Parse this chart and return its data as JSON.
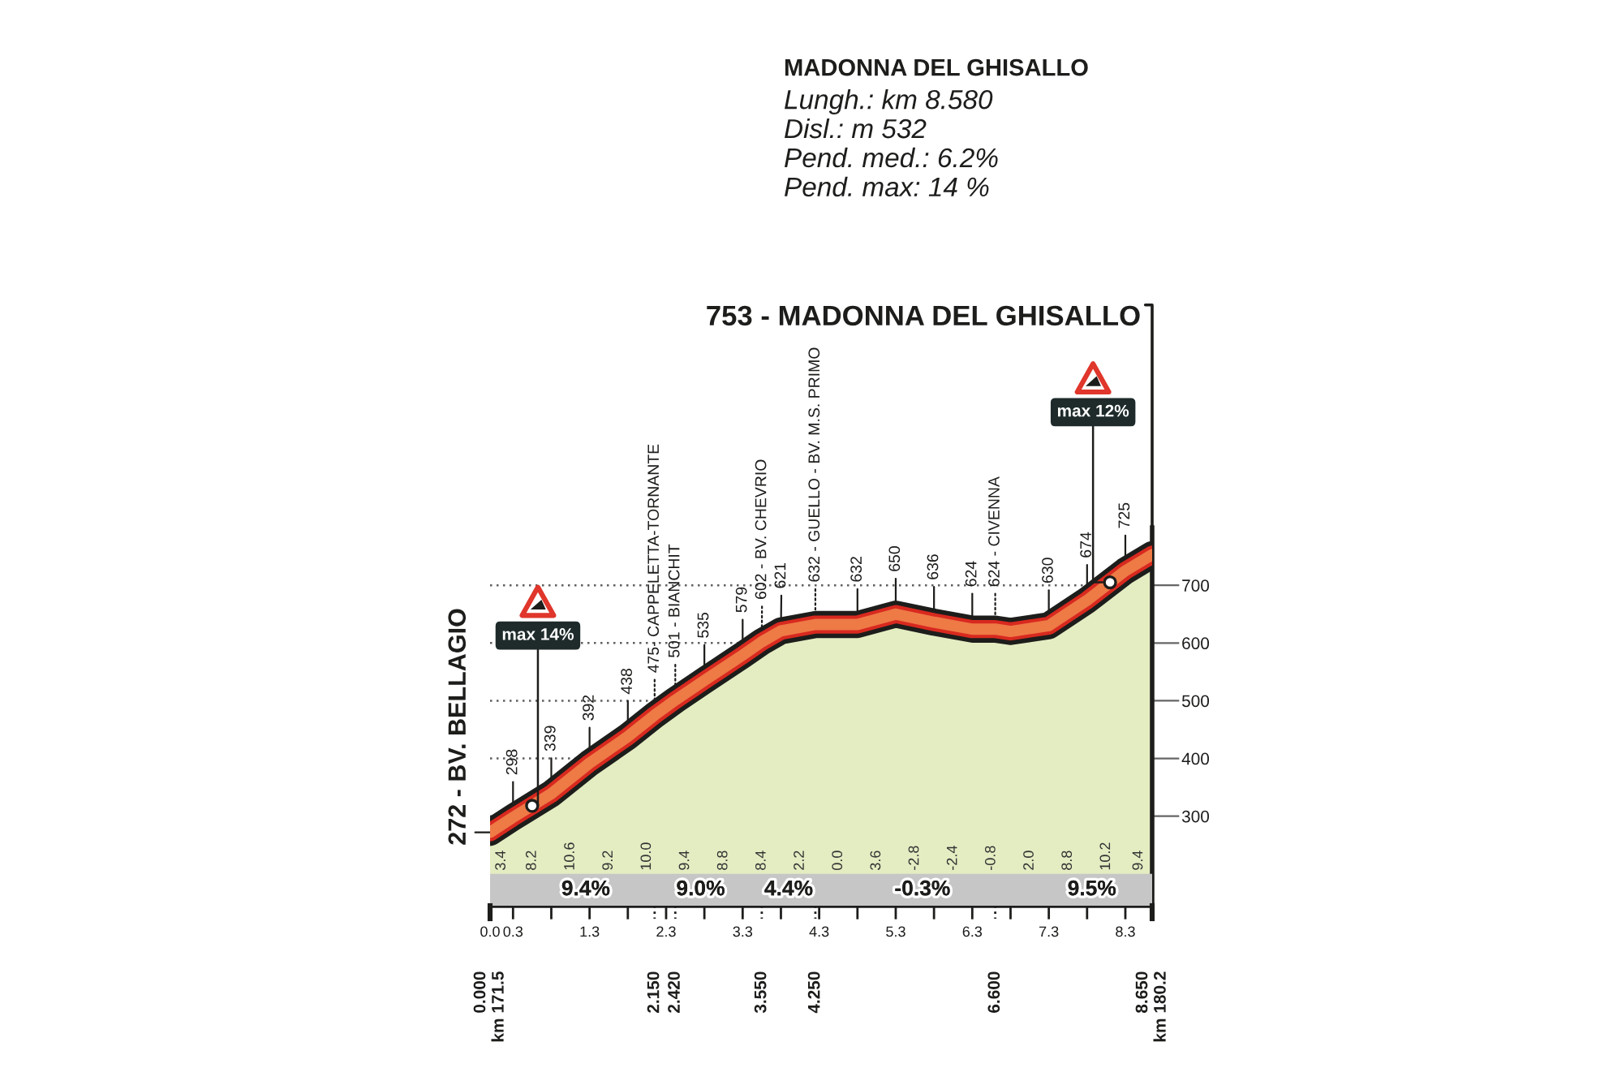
{
  "chart_data": {
    "type": "area",
    "title": "MADONNA DEL GHISALLO",
    "subtitle": "Lungh.: km 8.580\nDisl.: m 532\nPend. med.: 6.2%\nPend. max: 14 %",
    "x": [
      0,
      0.3,
      0.8,
      1.3,
      1.8,
      2.15,
      2.42,
      2.8,
      3.3,
      3.55,
      3.8,
      4.25,
      4.8,
      5.3,
      5.8,
      6.3,
      6.6,
      6.8,
      7.3,
      7.8,
      8.3,
      8.65
    ],
    "series": [
      {
        "color": "#e4ecc2",
        "values": [
          272,
          298,
          339,
          392,
          438,
          475,
          501,
          535,
          579,
          602,
          621,
          632,
          632,
          650,
          636,
          624,
          624,
          620,
          630,
          674,
          725,
          753
        ],
        "value_labels": [
          "272 - BV. BELLAGIO",
          "298",
          "339",
          "392",
          "438",
          "475- CAPPELETTA-TORNANTE",
          "501 - BIANCHIT",
          "535",
          "579",
          "602 - BV. CHEVRIO",
          "621",
          "632 - GUELLO - BV. M.S. PRIMO",
          "632",
          "650",
          "636",
          "624",
          "624 - CIVENNA",
          null,
          "630",
          "674",
          "725",
          "753 - MADONNA DEL GHISALLO"
        ]
      }
    ],
    "xlim": [
      0,
      8.65
    ],
    "xticks": [
      {
        "value": 0,
        "label": "0.0"
      },
      0.3,
      {
        "value": 0.8,
        "label": null
      },
      1.3,
      {
        "value": 1.8,
        "label": null
      },
      2.3,
      {
        "value": 2.8,
        "label": null
      },
      3.3,
      {
        "value": 3.8,
        "label": null
      },
      4.3,
      {
        "value": 4.8,
        "label": null
      },
      5.3,
      {
        "value": 5.8,
        "label": null
      },
      6.3,
      {
        "value": 6.8,
        "label": null
      },
      7.3,
      {
        "value": 7.8,
        "label": null
      },
      8.3
    ],
    "x2lim": [
      0,
      8.65
    ],
    "x2ticks": [
      {
        "value": 0,
        "label": "0.000\nkm 171.5"
      },
      {
        "value": 2.15,
        "label": "2.150"
      },
      {
        "value": 2.42,
        "label": "2.420"
      },
      {
        "value": 3.55,
        "label": "3.550"
      },
      {
        "value": 4.25,
        "label": "4.250"
      },
      {
        "value": 6.6,
        "label": "6.600"
      },
      {
        "value": 8.65,
        "label": "8.650\nkm 180.2"
      }
    ],
    "ylim": [
      145,
      800
    ],
    "yticks": [
      300,
      400,
      500,
      600,
      700
    ],
    "grid": true,
    "bands": [
      {
        "axis": "y",
        "from": 145,
        "to": 200,
        "color": "#c6c6c6"
      }
    ],
    "annotations": [
      {
        "text": "max 14%",
        "x": 0.55,
        "y": 318
      },
      {
        "text": "max 12%",
        "x": 8.1,
        "y": 705
      },
      "3.4",
      "8.2",
      "10.6",
      "9.2",
      "10.0",
      "9.4",
      "8.8",
      "8.4",
      "2.2",
      "0.0",
      "3.6",
      "-2.8",
      "-2.4",
      "-0.8",
      "2.0",
      "8.8",
      "10.2",
      "9.4",
      "9.4%",
      "9.0%",
      "4.4%",
      "-0.3%",
      "9.5%"
    ]
  }
}
